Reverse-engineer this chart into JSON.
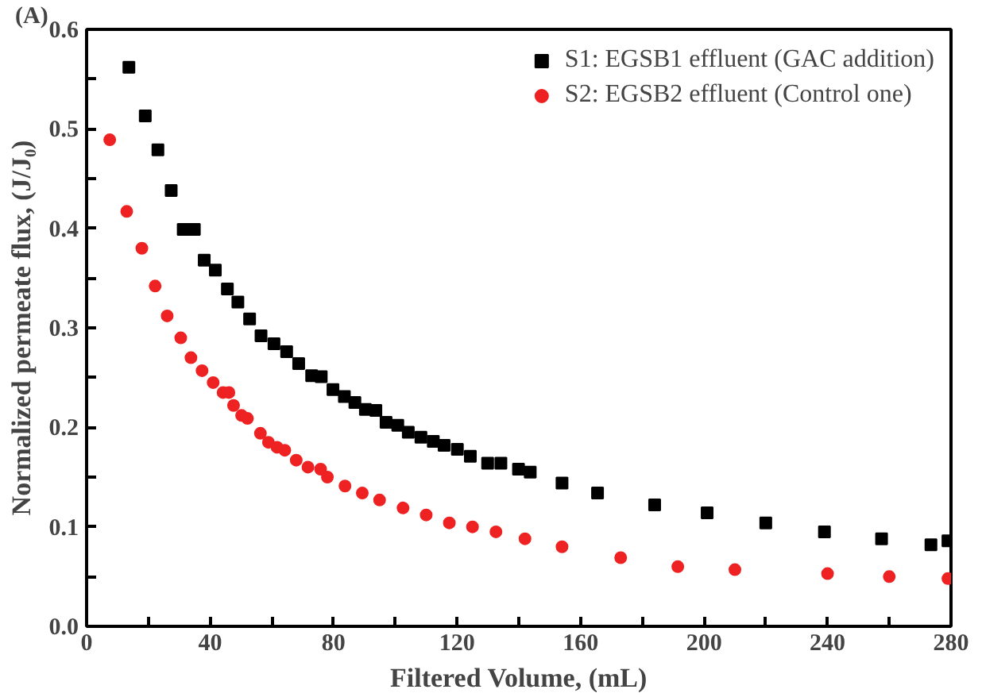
{
  "chart_data": {
    "type": "scatter",
    "xlabel": "Filtered Volume, (mL)",
    "ylabel": "Normalized permeate flux, (J/J₀)",
    "annotations": [
      "(A)"
    ],
    "xlim": [
      0,
      280
    ],
    "ylim": [
      0,
      0.6
    ],
    "xticks": [
      0,
      {
        "value": 20,
        "label": null
      },
      40,
      {
        "value": 60,
        "label": null
      },
      80,
      {
        "value": 100,
        "label": null
      },
      120,
      {
        "value": 140,
        "label": null
      },
      160,
      {
        "value": 180,
        "label": null
      },
      200,
      {
        "value": 220,
        "label": null
      },
      240,
      {
        "value": 260,
        "label": null
      },
      280
    ],
    "yticks": [
      {
        "value": 0,
        "label": "0.0"
      },
      {
        "value": 0.05,
        "label": null
      },
      {
        "value": 0.1,
        "label": "0.1"
      },
      {
        "value": 0.15,
        "label": null
      },
      {
        "value": 0.2,
        "label": "0.2"
      },
      {
        "value": 0.25,
        "label": null
      },
      {
        "value": 0.3,
        "label": "0.3"
      },
      {
        "value": 0.35,
        "label": null
      },
      {
        "value": 0.4,
        "label": "0.4"
      },
      {
        "value": 0.45,
        "label": null
      },
      {
        "value": 0.5,
        "label": "0.5"
      },
      {
        "value": 0.55,
        "label": null
      },
      {
        "value": 0.6,
        "label": "0.6"
      }
    ],
    "grid": false,
    "legend": "top right",
    "series": [
      {
        "name": "S1: EGSB1 effluent (GAC addition)",
        "color": "#000000",
        "marker": "square",
        "x": [
          13.7,
          19.0,
          23.1,
          27.4,
          31.3,
          34.9,
          38.1,
          41.7,
          45.6,
          49,
          52.8,
          56.5,
          60.7,
          64.8,
          68.7,
          72.9,
          76,
          79.8,
          83.5,
          86.9,
          90.3,
          93.7,
          97,
          100.8,
          104.2,
          108.3,
          112.3,
          115.8,
          120.1,
          124.3,
          129.9,
          134.2,
          139.9,
          143.7,
          154,
          165.5,
          184,
          201,
          220,
          239,
          257.5,
          273.5,
          279
        ],
        "values": [
          0.562,
          0.513,
          0.479,
          0.438,
          0.399,
          0.399,
          0.368,
          0.358,
          0.339,
          0.326,
          0.309,
          0.292,
          0.284,
          0.276,
          0.264,
          0.252,
          0.251,
          0.238,
          0.231,
          0.225,
          0.218,
          0.217,
          0.205,
          0.202,
          0.195,
          0.19,
          0.186,
          0.182,
          0.178,
          0.171,
          0.164,
          0.164,
          0.158,
          0.155,
          0.144,
          0.134,
          0.122,
          0.114,
          0.104,
          0.095,
          0.088,
          0.082,
          0.086
        ]
      },
      {
        "name": "S2: EGSB2 effluent (Control one)",
        "color": "#ee2222",
        "marker": "circle",
        "x": [
          7.5,
          13.0,
          17.9,
          22.2,
          26.1,
          30.5,
          33.8,
          37.4,
          41,
          44.2,
          46.1,
          47.6,
          50.2,
          52.1,
          56.3,
          58.9,
          61.7,
          64.2,
          67.9,
          71.7,
          75.8,
          78,
          83.7,
          89.3,
          94.9,
          102.5,
          110,
          117.5,
          125,
          132.6,
          142,
          154,
          173,
          191.5,
          210,
          240,
          260,
          279
        ],
        "values": [
          0.489,
          0.417,
          0.38,
          0.342,
          0.312,
          0.29,
          0.27,
          0.257,
          0.245,
          0.235,
          0.235,
          0.222,
          0.212,
          0.209,
          0.194,
          0.185,
          0.18,
          0.177,
          0.167,
          0.16,
          0.158,
          0.15,
          0.141,
          0.134,
          0.127,
          0.119,
          0.112,
          0.104,
          0.1,
          0.095,
          0.088,
          0.08,
          0.069,
          0.06,
          0.057,
          0.053,
          0.05,
          0.048
        ]
      }
    ]
  }
}
